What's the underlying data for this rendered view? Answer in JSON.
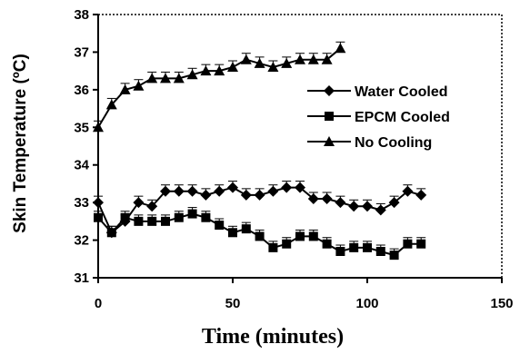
{
  "chart_data": {
    "type": "line",
    "title": "",
    "xlabel": "Time (minutes)",
    "ylabel": "Skin Temperature (ºC)",
    "xlim": [
      0,
      150
    ],
    "ylim": [
      31,
      38
    ],
    "xticks": [
      0,
      50,
      100,
      150
    ],
    "yticks": [
      31,
      32,
      33,
      34,
      35,
      36,
      37,
      38
    ],
    "grid": false,
    "legend_position": "right",
    "series": [
      {
        "name": "Water Cooled",
        "marker": "diamond",
        "x": [
          0,
          5,
          10,
          15,
          20,
          25,
          30,
          35,
          40,
          45,
          50,
          55,
          60,
          65,
          70,
          75,
          80,
          85,
          90,
          95,
          100,
          105,
          110,
          115,
          120
        ],
        "y": [
          33.0,
          32.2,
          32.5,
          33.0,
          32.9,
          33.3,
          33.3,
          33.3,
          33.2,
          33.3,
          33.4,
          33.2,
          33.2,
          33.3,
          33.4,
          33.4,
          33.1,
          33.1,
          33.0,
          32.9,
          32.9,
          32.8,
          33.0,
          33.3,
          33.2
        ]
      },
      {
        "name": "EPCM Cooled",
        "marker": "square",
        "x": [
          0,
          5,
          10,
          15,
          20,
          25,
          30,
          35,
          40,
          45,
          50,
          55,
          60,
          65,
          70,
          75,
          80,
          85,
          90,
          95,
          100,
          105,
          110,
          115,
          120
        ],
        "y": [
          32.6,
          32.2,
          32.6,
          32.5,
          32.5,
          32.5,
          32.6,
          32.7,
          32.6,
          32.4,
          32.2,
          32.3,
          32.1,
          31.8,
          31.9,
          32.1,
          32.1,
          31.9,
          31.7,
          31.8,
          31.8,
          31.7,
          31.6,
          31.9,
          31.9
        ]
      },
      {
        "name": "No Cooling",
        "marker": "triangle",
        "x": [
          0,
          5,
          10,
          15,
          20,
          25,
          30,
          35,
          40,
          45,
          50,
          55,
          60,
          65,
          70,
          75,
          80,
          85,
          90
        ],
        "y": [
          35.0,
          35.6,
          36.0,
          36.1,
          36.3,
          36.3,
          36.3,
          36.4,
          36.5,
          36.5,
          36.6,
          36.8,
          36.7,
          36.6,
          36.7,
          36.8,
          36.8,
          36.8,
          37.1
        ]
      }
    ]
  }
}
